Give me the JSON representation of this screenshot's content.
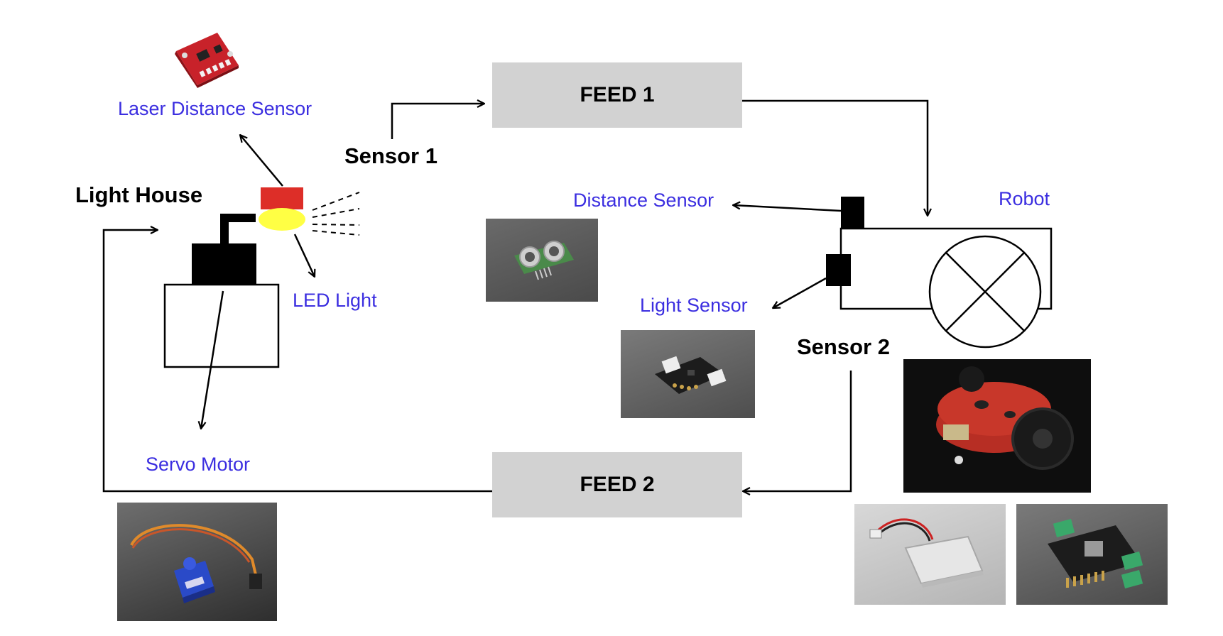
{
  "labels": {
    "laser_distance_sensor": "Laser Distance Sensor",
    "sensor1": "Sensor 1",
    "light_house": "Light House",
    "led_light": "LED Light",
    "servo_motor": "Servo Motor",
    "distance_sensor": "Distance Sensor",
    "light_sensor": "Light Sensor",
    "robot": "Robot",
    "sensor2": "Sensor 2"
  },
  "feeds": {
    "feed1": "FEED 1",
    "feed2": "FEED 2"
  },
  "colors": {
    "label_blue": "#3b2ee0",
    "feed_bg": "#d2d2d2",
    "led_red": "#dd2e28",
    "led_yellow": "#ffff44"
  }
}
